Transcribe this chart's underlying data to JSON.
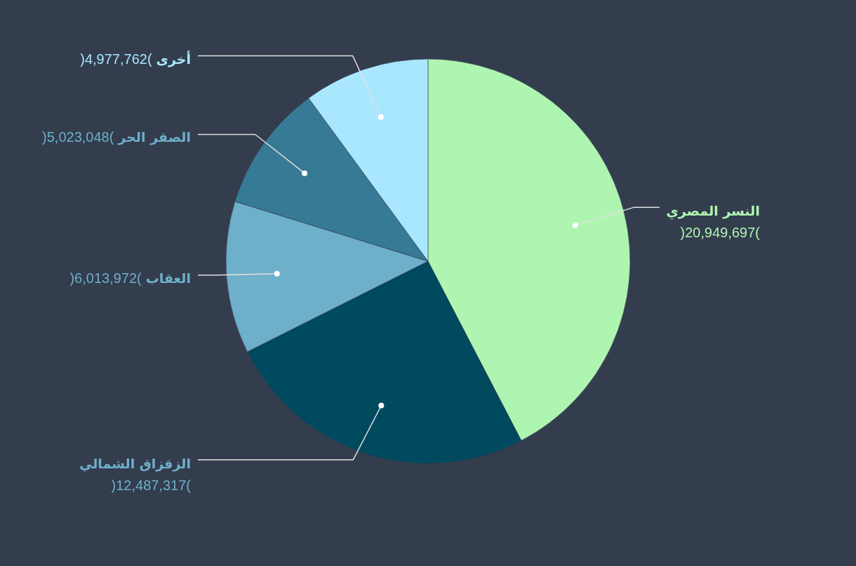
{
  "chart_data": {
    "type": "pie",
    "categories": [
      "النسر المصري",
      "الزقزاق الشمالي",
      "العقاب",
      "الصقر الحر",
      "أخرى"
    ],
    "values": [
      20949697,
      12487317,
      6013972,
      5023048,
      4977762
    ],
    "value_labels": [
      ")20,949,697(",
      ")12,487,317(",
      ")6,013,972(",
      ")5,023,048(",
      ")4,977,762("
    ],
    "colors": [
      "#aff5b2",
      "#004a5f",
      "#6eafca",
      "#377a95",
      "#a9e7ff"
    ],
    "legend": false
  }
}
